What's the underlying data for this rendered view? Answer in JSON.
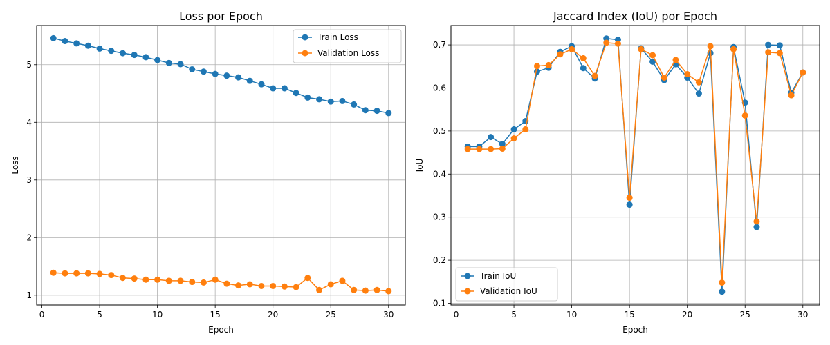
{
  "chart_data": [
    {
      "type": "line",
      "title": "Loss por Epoch",
      "xlabel": "Epoch",
      "ylabel": "Loss",
      "xlim": [
        -0.45,
        31.45
      ],
      "ylim": [
        0.83,
        5.68
      ],
      "xticks": [
        0,
        5,
        10,
        15,
        20,
        25,
        30
      ],
      "yticks": [
        1,
        2,
        3,
        4,
        5
      ],
      "grid": true,
      "legend_position": "top-right",
      "x": [
        1,
        2,
        3,
        4,
        5,
        6,
        7,
        8,
        9,
        10,
        11,
        12,
        13,
        14,
        15,
        16,
        17,
        18,
        19,
        20,
        21,
        22,
        23,
        24,
        25,
        26,
        27,
        28,
        29,
        30
      ],
      "series": [
        {
          "name": "Train Loss",
          "color": "#1f77b4",
          "values": [
            5.46,
            5.41,
            5.37,
            5.33,
            5.28,
            5.24,
            5.2,
            5.17,
            5.13,
            5.08,
            5.03,
            5.01,
            4.92,
            4.88,
            4.84,
            4.81,
            4.78,
            4.72,
            4.66,
            4.59,
            4.59,
            4.51,
            4.43,
            4.4,
            4.36,
            4.37,
            4.31,
            4.21,
            4.2,
            4.16
          ]
        },
        {
          "name": "Validation Loss",
          "color": "#ff7f0e",
          "values": [
            1.39,
            1.38,
            1.38,
            1.38,
            1.37,
            1.35,
            1.3,
            1.29,
            1.27,
            1.27,
            1.25,
            1.25,
            1.23,
            1.22,
            1.27,
            1.2,
            1.17,
            1.19,
            1.16,
            1.16,
            1.15,
            1.14,
            1.3,
            1.09,
            1.19,
            1.25,
            1.09,
            1.08,
            1.09,
            1.07
          ]
        }
      ]
    },
    {
      "type": "line",
      "title": "Jaccard Index (IoU) por Epoch",
      "xlabel": "Epoch",
      "ylabel": "IoU",
      "xlim": [
        -0.45,
        31.45
      ],
      "ylim": [
        0.096,
        0.745
      ],
      "xticks": [
        0,
        5,
        10,
        15,
        20,
        25,
        30
      ],
      "yticks": [
        0.1,
        0.2,
        0.3,
        0.4,
        0.5,
        0.6,
        0.7
      ],
      "grid": true,
      "legend_position": "bottom-left",
      "x": [
        1,
        2,
        3,
        4,
        5,
        6,
        7,
        8,
        9,
        10,
        11,
        12,
        13,
        14,
        15,
        16,
        17,
        18,
        19,
        20,
        21,
        22,
        23,
        24,
        25,
        26,
        27,
        28,
        29,
        30
      ],
      "series": [
        {
          "name": "Train IoU",
          "color": "#1f77b4",
          "values": [
            0.464,
            0.464,
            0.486,
            0.47,
            0.504,
            0.523,
            0.638,
            0.647,
            0.684,
            0.697,
            0.646,
            0.622,
            0.715,
            0.712,
            0.329,
            0.692,
            0.661,
            0.618,
            0.655,
            0.624,
            0.587,
            0.681,
            0.127,
            0.695,
            0.566,
            0.277,
            0.7,
            0.699,
            0.589,
            0.636
          ]
        },
        {
          "name": "Validation IoU",
          "color": "#ff7f0e",
          "values": [
            0.458,
            0.458,
            0.458,
            0.459,
            0.483,
            0.504,
            0.651,
            0.653,
            0.678,
            0.69,
            0.669,
            0.628,
            0.705,
            0.703,
            0.345,
            0.69,
            0.676,
            0.624,
            0.665,
            0.632,
            0.613,
            0.697,
            0.148,
            0.69,
            0.536,
            0.29,
            0.683,
            0.681,
            0.583,
            0.636
          ]
        }
      ]
    }
  ]
}
